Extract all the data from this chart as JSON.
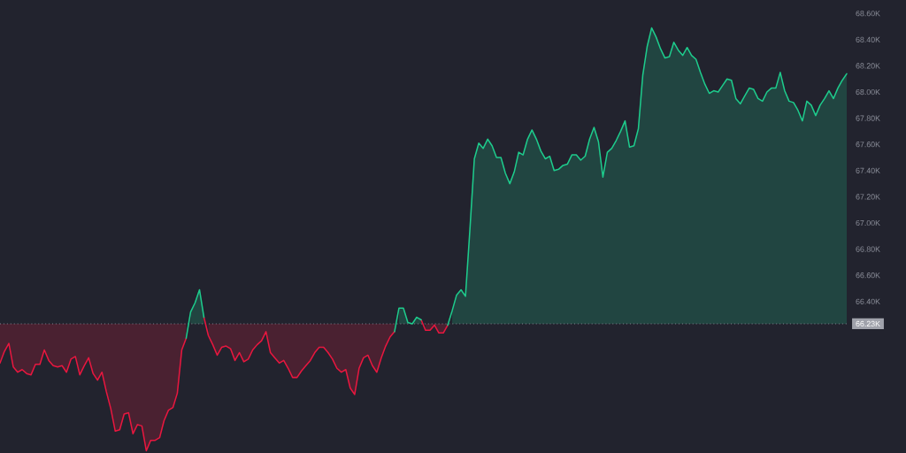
{
  "chart_data": {
    "type": "line",
    "categories": [
      null,
      null,
      null,
      null,
      null,
      null,
      null,
      null,
      null,
      null,
      null,
      null,
      null,
      null,
      null,
      null,
      null,
      null,
      null,
      null,
      null,
      null,
      null,
      null,
      null,
      null,
      null,
      null,
      null,
      null,
      null,
      null,
      null,
      null,
      null,
      null,
      null,
      null,
      null,
      null,
      null,
      null,
      null,
      null,
      null,
      null,
      null,
      null,
      null,
      null,
      null,
      null,
      null,
      null,
      null,
      null,
      null,
      null,
      null,
      null,
      null,
      null,
      null,
      null,
      null,
      null,
      null,
      null,
      null,
      null,
      null,
      null,
      null,
      null,
      null,
      null,
      null,
      null,
      null,
      null,
      null,
      null,
      null,
      null,
      null,
      null,
      null,
      null,
      null,
      null,
      null,
      null,
      null,
      null,
      null,
      null,
      null,
      null,
      null,
      null,
      null,
      null,
      null,
      null,
      null,
      null,
      null,
      null,
      null,
      null,
      null,
      null,
      null,
      null,
      null,
      null,
      null,
      null,
      null,
      null,
      null,
      null,
      null,
      null,
      null,
      null,
      null,
      null,
      null,
      null,
      null,
      null,
      null,
      null,
      null,
      null,
      null,
      null,
      null,
      null,
      null,
      null,
      null,
      null,
      null,
      null,
      null,
      null,
      null,
      null,
      null,
      null,
      null,
      null,
      null,
      null,
      null,
      null,
      null,
      null,
      null,
      null,
      null,
      null,
      null,
      null,
      null,
      null,
      null,
      null,
      null,
      null,
      null,
      null,
      null,
      null,
      null,
      null,
      null,
      null,
      null,
      null,
      null,
      null,
      null,
      null,
      null,
      null,
      null,
      null,
      null,
      null
    ],
    "series": [
      {
        "color": "#e8173f",
        "values": [
          65.93,
          66.02,
          66.08,
          65.9,
          65.86,
          65.88,
          65.85,
          65.84,
          65.92,
          65.92,
          66.03,
          65.95,
          65.91,
          65.9,
          65.91,
          65.86,
          65.96,
          65.98,
          65.84,
          65.91,
          65.97,
          65.85,
          65.8,
          65.86,
          65.71,
          65.58,
          65.41,
          65.42,
          65.54,
          65.55,
          65.39,
          65.46,
          65.45,
          65.26,
          65.34,
          65.34,
          65.36,
          65.49,
          65.57,
          65.59,
          65.7,
          66.03,
          66.12,
          null,
          null,
          null,
          66.28,
          66.14,
          66.07,
          65.99,
          66.05,
          66.06,
          66.04,
          65.95,
          66.01,
          65.94,
          65.96,
          66.03,
          66.07,
          66.1,
          66.17,
          66.01,
          65.97,
          65.93,
          65.95,
          65.89,
          65.82,
          65.82,
          65.87,
          65.91,
          65.95,
          66.01,
          66.05,
          66.05,
          66.01,
          65.96,
          65.89,
          65.86,
          65.88,
          65.74,
          65.69,
          65.89,
          65.97,
          65.99,
          65.91,
          65.86,
          65.97,
          66.06,
          66.13,
          66.17,
          null,
          null,
          null,
          null,
          null,
          66.26,
          66.18,
          66.18,
          66.22,
          66.16,
          66.16,
          66.22,
          null,
          null,
          null,
          null,
          null,
          null,
          null,
          null,
          null,
          null,
          null,
          null,
          null,
          null,
          null,
          null,
          null,
          null,
          null,
          null,
          null,
          null,
          null,
          null,
          null,
          null,
          null,
          null,
          null,
          null,
          null,
          null,
          null,
          null,
          null,
          null,
          null,
          null,
          null,
          null,
          null,
          null,
          null,
          null,
          null,
          null,
          null,
          null,
          null,
          null,
          null,
          null,
          null,
          null,
          null,
          null,
          null,
          null,
          null,
          null,
          null,
          null,
          null,
          null,
          null,
          null,
          null,
          null,
          null,
          null,
          null,
          null,
          null,
          null,
          null,
          null,
          null,
          null,
          null,
          null,
          null,
          null,
          null,
          null,
          null,
          null,
          null,
          null,
          null,
          null
        ],
        "lower": [
          65.93,
          66.02,
          66.08,
          65.9,
          65.86,
          65.88,
          65.85,
          65.84,
          65.92,
          65.92,
          66.03,
          65.95,
          65.91,
          65.9,
          65.91,
          65.86,
          65.96,
          65.98,
          65.84,
          65.91,
          65.97,
          65.85,
          65.8,
          65.86,
          65.71,
          65.58,
          65.41,
          65.42,
          65.54,
          65.55,
          65.39,
          65.46,
          65.45,
          65.26,
          65.34,
          65.34,
          65.36,
          65.49,
          65.57,
          65.59,
          65.7,
          66.03,
          66.12,
          null,
          null,
          null,
          null,
          66.14,
          66.07,
          65.99,
          66.05,
          66.06,
          66.04,
          65.95,
          66.01,
          65.94,
          65.96,
          66.03,
          66.07,
          66.1,
          66.17,
          66.01,
          65.97,
          65.93,
          65.95,
          65.89,
          65.82,
          65.82,
          65.87,
          65.91,
          65.95,
          66.01,
          66.05,
          66.05,
          66.01,
          65.96,
          65.89,
          65.86,
          65.88,
          65.74,
          65.69,
          65.89,
          65.97,
          65.99,
          65.91,
          65.86,
          65.97,
          66.06,
          66.13,
          66.17,
          null,
          null,
          null,
          null,
          null,
          null,
          66.18,
          66.18,
          66.22,
          66.16,
          66.16,
          66.22,
          null,
          null,
          null,
          null,
          null,
          null,
          null,
          null,
          null,
          null,
          null,
          null,
          null,
          null,
          null,
          null,
          null,
          null,
          null,
          null,
          null,
          null,
          null,
          null,
          null,
          null,
          null,
          null,
          null,
          null,
          null,
          null,
          null,
          null,
          null,
          null,
          null,
          null,
          null,
          null,
          null,
          null,
          null,
          null,
          null,
          null,
          null,
          null,
          null,
          null,
          null,
          null,
          null,
          null,
          null,
          null,
          null,
          null,
          null,
          null,
          null,
          null,
          null,
          null,
          null,
          null,
          null,
          null,
          null,
          null,
          null,
          null,
          null,
          null,
          null,
          null,
          null,
          null,
          null,
          null,
          null,
          null,
          null,
          null,
          null,
          null,
          null,
          null,
          null,
          null
        ],
        "upper": [
          66.23,
          66.23,
          66.23,
          66.23,
          66.23,
          66.23,
          66.23,
          66.23,
          66.23,
          66.23,
          66.23,
          66.23,
          66.23,
          66.23,
          66.23,
          66.23,
          66.23,
          66.23,
          66.23,
          66.23,
          66.23,
          66.23,
          66.23,
          66.23,
          66.23,
          66.23,
          66.23,
          66.23,
          66.23,
          66.23,
          66.23,
          66.23,
          66.23,
          66.23,
          66.23,
          66.23,
          66.23,
          66.23,
          66.23,
          66.23,
          66.23,
          66.23,
          66.23,
          null,
          null,
          null,
          null,
          66.23,
          66.23,
          66.23,
          66.23,
          66.23,
          66.23,
          66.23,
          66.23,
          66.23,
          66.23,
          66.23,
          66.23,
          66.23,
          66.23,
          66.23,
          66.23,
          66.23,
          66.23,
          66.23,
          66.23,
          66.23,
          66.23,
          66.23,
          66.23,
          66.23,
          66.23,
          66.23,
          66.23,
          66.23,
          66.23,
          66.23,
          66.23,
          66.23,
          66.23,
          66.23,
          66.23,
          66.23,
          66.23,
          66.23,
          66.23,
          66.23,
          66.23,
          66.23,
          null,
          null,
          null,
          null,
          null,
          null,
          66.23,
          66.23,
          66.23,
          66.23,
          66.23,
          66.23,
          null,
          null,
          null,
          null,
          null,
          null,
          null,
          null,
          null,
          null,
          null,
          null,
          null,
          null,
          null,
          null,
          null,
          null,
          null,
          null,
          null,
          null,
          null,
          null,
          null,
          null,
          null,
          null,
          null,
          null,
          null,
          null,
          null,
          null,
          null,
          null,
          null,
          null,
          null,
          null,
          null,
          null,
          null,
          null,
          null,
          null,
          null,
          null,
          null,
          null,
          null,
          null,
          null,
          null,
          null,
          null,
          null,
          null,
          null,
          null,
          null,
          null,
          null,
          null,
          null,
          null,
          null,
          null,
          null,
          null,
          null,
          null,
          null,
          null,
          null,
          null,
          null,
          null,
          null,
          null,
          null,
          null,
          null,
          null,
          null,
          null,
          null,
          null,
          null,
          null
        ]
      },
      {
        "color": "#1ecb8c",
        "values": [
          null,
          null,
          null,
          null,
          null,
          null,
          null,
          null,
          null,
          null,
          null,
          null,
          null,
          null,
          null,
          null,
          null,
          null,
          null,
          null,
          null,
          null,
          null,
          null,
          null,
          null,
          null,
          null,
          null,
          null,
          null,
          null,
          null,
          null,
          null,
          null,
          null,
          null,
          null,
          null,
          null,
          null,
          66.12,
          66.32,
          66.39,
          66.49,
          66.28,
          null,
          null,
          null,
          null,
          null,
          null,
          null,
          null,
          null,
          null,
          null,
          null,
          null,
          null,
          null,
          null,
          null,
          null,
          null,
          null,
          null,
          null,
          null,
          null,
          null,
          null,
          null,
          null,
          null,
          null,
          null,
          null,
          null,
          null,
          null,
          null,
          null,
          null,
          null,
          null,
          null,
          null,
          66.17,
          66.35,
          66.35,
          66.24,
          66.23,
          66.28,
          66.26,
          null,
          null,
          null,
          null,
          null,
          66.22,
          66.33,
          66.45,
          66.49,
          66.44,
          66.95,
          67.49,
          67.61,
          67.57,
          67.64,
          67.59,
          67.5,
          67.5,
          67.38,
          67.3,
          67.39,
          67.54,
          67.52,
          67.64,
          67.71,
          67.64,
          67.55,
          67.49,
          67.51,
          67.4,
          67.41,
          67.44,
          67.45,
          67.52,
          67.52,
          67.48,
          67.51,
          67.64,
          67.73,
          67.62,
          67.35,
          67.54,
          67.57,
          67.63,
          67.7,
          67.78,
          67.58,
          67.59,
          67.72,
          68.13,
          68.35,
          68.49,
          68.42,
          68.33,
          68.26,
          68.27,
          68.38,
          68.32,
          68.28,
          68.34,
          68.28,
          68.25,
          68.15,
          68.06,
          67.99,
          68.01,
          68.0,
          68.05,
          68.1,
          68.09,
          67.95,
          67.91,
          67.97,
          68.03,
          68.02,
          67.95,
          67.93,
          68.0,
          68.03,
          68.03,
          68.15,
          68.01,
          67.93,
          67.92,
          67.86,
          67.78,
          67.93,
          67.9,
          67.82,
          67.9,
          67.95,
          68.01,
          67.95,
          68.03,
          68.09,
          68.14
        ],
        "lower": [
          null,
          null,
          null,
          null,
          null,
          null,
          null,
          null,
          null,
          null,
          null,
          null,
          null,
          null,
          null,
          null,
          null,
          null,
          null,
          null,
          null,
          null,
          null,
          null,
          null,
          null,
          null,
          null,
          null,
          null,
          null,
          null,
          null,
          null,
          null,
          null,
          null,
          null,
          null,
          null,
          null,
          null,
          null,
          66.23,
          66.23,
          66.23,
          66.23,
          null,
          null,
          null,
          null,
          null,
          null,
          null,
          null,
          null,
          null,
          null,
          null,
          null,
          null,
          null,
          null,
          null,
          null,
          null,
          null,
          null,
          null,
          null,
          null,
          null,
          null,
          null,
          null,
          null,
          null,
          null,
          null,
          null,
          null,
          null,
          null,
          null,
          null,
          null,
          null,
          null,
          null,
          null,
          66.23,
          66.23,
          66.23,
          66.23,
          66.23,
          66.23,
          null,
          null,
          null,
          null,
          null,
          null,
          66.23,
          66.23,
          66.23,
          66.23,
          66.23,
          66.23,
          66.23,
          66.23,
          66.23,
          66.23,
          66.23,
          66.23,
          66.23,
          66.23,
          66.23,
          66.23,
          66.23,
          66.23,
          66.23,
          66.23,
          66.23,
          66.23,
          66.23,
          66.23,
          66.23,
          66.23,
          66.23,
          66.23,
          66.23,
          66.23,
          66.23,
          66.23,
          66.23,
          66.23,
          66.23,
          66.23,
          66.23,
          66.23,
          66.23,
          66.23,
          66.23,
          66.23,
          66.23,
          66.23,
          66.23,
          66.23,
          66.23,
          66.23,
          66.23,
          66.23,
          66.23,
          66.23,
          66.23,
          66.23,
          66.23,
          66.23,
          66.23,
          66.23,
          66.23,
          66.23,
          66.23,
          66.23,
          66.23,
          66.23,
          66.23,
          66.23,
          66.23,
          66.23,
          66.23,
          66.23,
          66.23,
          66.23,
          66.23,
          66.23,
          66.23,
          66.23,
          66.23,
          66.23,
          66.23,
          66.23,
          66.23,
          66.23,
          66.23,
          66.23,
          66.23,
          66.23,
          66.23,
          66.23,
          66.23,
          66.23
        ],
        "upper": [
          null,
          null,
          null,
          null,
          null,
          null,
          null,
          null,
          null,
          null,
          null,
          null,
          null,
          null,
          null,
          null,
          null,
          null,
          null,
          null,
          null,
          null,
          null,
          null,
          null,
          null,
          null,
          null,
          null,
          null,
          null,
          null,
          null,
          null,
          null,
          null,
          null,
          null,
          null,
          null,
          null,
          null,
          null,
          66.32,
          66.39,
          66.49,
          66.28,
          null,
          null,
          null,
          null,
          null,
          null,
          null,
          null,
          null,
          null,
          null,
          null,
          null,
          null,
          null,
          null,
          null,
          null,
          null,
          null,
          null,
          null,
          null,
          null,
          null,
          null,
          null,
          null,
          null,
          null,
          null,
          null,
          null,
          null,
          null,
          null,
          null,
          null,
          null,
          null,
          null,
          null,
          null,
          66.35,
          66.35,
          66.24,
          66.23,
          66.28,
          66.26,
          null,
          null,
          null,
          null,
          null,
          null,
          66.33,
          66.45,
          66.49,
          66.44,
          66.95,
          67.49,
          67.61,
          67.57,
          67.64,
          67.59,
          67.5,
          67.5,
          67.38,
          67.3,
          67.39,
          67.54,
          67.52,
          67.64,
          67.71,
          67.64,
          67.55,
          67.49,
          67.51,
          67.4,
          67.41,
          67.44,
          67.45,
          67.52,
          67.52,
          67.48,
          67.51,
          67.64,
          67.73,
          67.62,
          67.35,
          67.54,
          67.57,
          67.63,
          67.7,
          67.78,
          67.58,
          67.59,
          67.72,
          68.13,
          68.35,
          68.49,
          68.42,
          68.33,
          68.26,
          68.27,
          68.38,
          68.32,
          68.28,
          68.34,
          68.28,
          68.25,
          68.15,
          68.06,
          67.99,
          68.01,
          68.0,
          68.05,
          68.1,
          68.09,
          67.95,
          67.91,
          67.97,
          68.03,
          68.02,
          67.95,
          67.93,
          68.0,
          68.03,
          68.03,
          68.15,
          68.01,
          67.93,
          67.92,
          67.86,
          67.78,
          67.93,
          67.9,
          67.82,
          67.9,
          67.95,
          68.01,
          67.95,
          68.03,
          68.09,
          68.14
        ]
      }
    ],
    "ylim": [
      65.243,
      68.703
    ],
    "yticks": [
      {
        "value": 66.4,
        "label": "66.40K"
      },
      {
        "value": 66.6,
        "label": "66.60K"
      },
      {
        "value": 66.8,
        "label": "66.80K"
      },
      {
        "value": 67.0,
        "label": "67.00K"
      },
      {
        "value": 67.2,
        "label": "67.20K"
      },
      {
        "value": 67.4,
        "label": "67.40K"
      },
      {
        "value": 67.6,
        "label": "67.60K"
      },
      {
        "value": 67.8,
        "label": "67.80K"
      },
      {
        "value": 68.0,
        "label": "68.00K"
      },
      {
        "value": 68.2,
        "label": "68.20K"
      },
      {
        "value": 68.4,
        "label": "68.40K"
      },
      {
        "value": 68.6,
        "label": "68.60K"
      }
    ],
    "tick_labels": "y",
    "ref_lines": [
      {
        "axis": "y",
        "value": 66.23,
        "label": "66.23K",
        "color": "#80838f",
        "line_style": "dotted"
      }
    ]
  }
}
